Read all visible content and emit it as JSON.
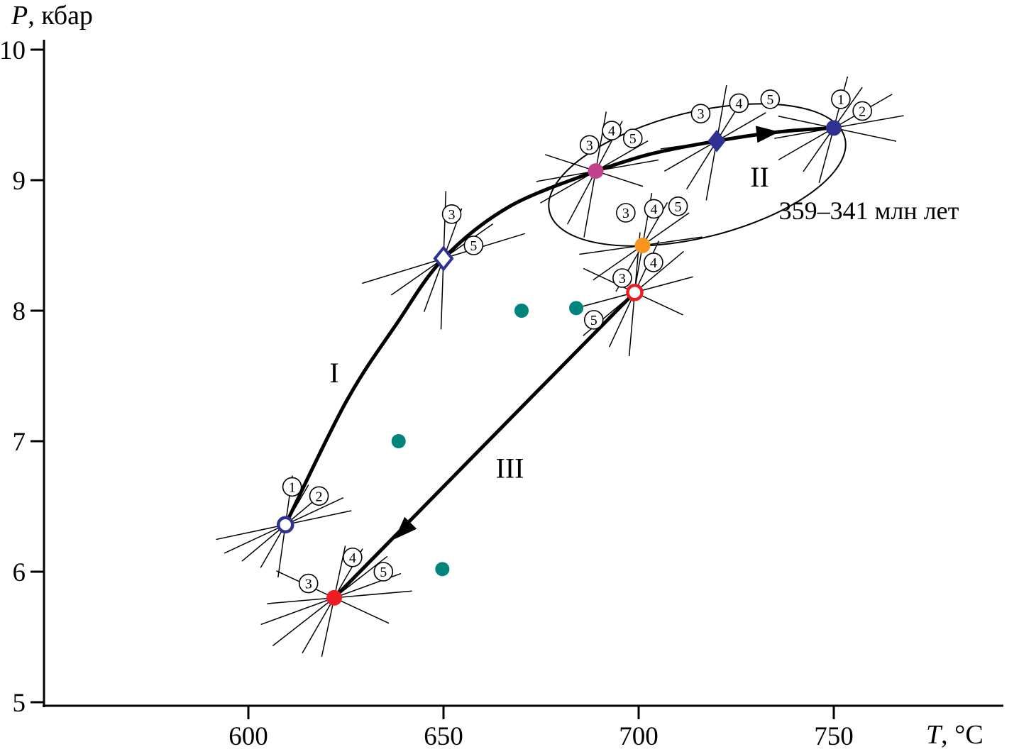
{
  "figure": {
    "y_axis_title": "P, кбар",
    "x_axis_title": "T, °C"
  },
  "chart_data": {
    "type": "scatter",
    "xlabel": "T, °C",
    "ylabel": "P, кбар",
    "x_title": {
      "italic": "T",
      "rest": ", °C"
    },
    "y_title": {
      "italic": "P",
      "rest": ", кбар"
    },
    "xlim": [
      560,
      795
    ],
    "ylim": [
      5,
      10
    ],
    "x_ticks": [
      "600",
      "650",
      "700",
      "750"
    ],
    "y_ticks": [
      "5",
      "6",
      "7",
      "8",
      "9",
      "10"
    ],
    "x_tick_values": [
      600,
      650,
      700,
      750
    ],
    "y_tick_values": [
      5,
      6,
      7,
      8,
      9,
      10
    ],
    "grid": false,
    "legend": "none",
    "colors": {
      "navy": "#2E3192",
      "red": "#EC1C24",
      "magenta": "#C2418C",
      "orange": "#F7941E",
      "teal": "#00857C",
      "black": "#000000"
    },
    "annotations": [
      {
        "id": "segment-label-I",
        "text": "I",
        "T": 622,
        "P": 7.45,
        "size": 40
      },
      {
        "id": "segment-label-II",
        "text": "II",
        "T": 731,
        "P": 8.95,
        "size": 40
      },
      {
        "id": "segment-label-III",
        "text": "III",
        "T": 667,
        "P": 6.72,
        "size": 40
      },
      {
        "id": "age-label",
        "text": "359–341 млн лет",
        "T": 759,
        "P": 8.7,
        "size": 36
      }
    ],
    "points": [
      {
        "id": "stage1-start",
        "marker": "circle-open",
        "color": "navy",
        "T": 609.5,
        "P": 6.36,
        "labels": [
          {
            "n": "1",
            "T": 611.2,
            "P": 6.65
          },
          {
            "n": "2",
            "T": 618.1,
            "P": 6.58
          }
        ],
        "cross_lines": [
          {
            "a": 82,
            "r1": 75,
            "r2": 70
          },
          {
            "a": 60,
            "r1": 70,
            "r2": 65
          },
          {
            "a": 40,
            "r1": 80,
            "r2": 75
          },
          {
            "a": 25,
            "r1": 95,
            "r2": 90
          },
          {
            "a": 12,
            "r1": 100,
            "r2": 95
          }
        ]
      },
      {
        "id": "stage3-end",
        "marker": "circle-filled",
        "color": "red",
        "T": 622,
        "P": 5.8,
        "labels": [
          {
            "n": "3",
            "T": 615.4,
            "P": 5.91
          },
          {
            "n": "4",
            "T": 626.7,
            "P": 6.11
          },
          {
            "n": "5",
            "T": 634.6,
            "P": 6.0
          }
        ],
        "cross_lines": [
          {
            "a": 78,
            "r1": 85,
            "r2": 75
          },
          {
            "a": 60,
            "r1": 90,
            "r2": 80
          },
          {
            "a": 38,
            "r1": 110,
            "r2": 95
          },
          {
            "a": 20,
            "r1": 110,
            "r2": 100
          },
          {
            "a": 5,
            "r1": 95,
            "r2": 110
          },
          {
            "a": -25,
            "r1": 90,
            "r2": 85
          }
        ]
      },
      {
        "id": "stage1-mid",
        "marker": "diamond-open",
        "color": "navy",
        "T": 650,
        "P": 8.4,
        "labels": [
          {
            "n": "3",
            "T": 652.1,
            "P": 8.74
          },
          {
            "n": "5",
            "T": 657.7,
            "P": 8.5
          }
        ],
        "cross_lines": [
          {
            "a": 88,
            "r1": 100,
            "r2": 95
          },
          {
            "a": 70,
            "r1": 80,
            "r2": 75
          },
          {
            "a": 35,
            "r1": 90,
            "r2": 85
          },
          {
            "a": 17,
            "r1": 120,
            "r2": 120
          }
        ]
      },
      {
        "id": "stage1-peak",
        "marker": "circle-filled",
        "color": "magenta",
        "T": 689,
        "P": 9.07,
        "labels": [
          {
            "n": "3",
            "T": 687.4,
            "P": 9.27
          },
          {
            "n": "4",
            "T": 693.1,
            "P": 9.38
          },
          {
            "n": "5",
            "T": 698.5,
            "P": 9.32
          }
        ],
        "cross_lines": [
          {
            "a": 80,
            "r1": 95,
            "r2": 85
          },
          {
            "a": 62,
            "r1": 85,
            "r2": 80
          },
          {
            "a": 30,
            "r1": 90,
            "r2": 85
          },
          {
            "a": 10,
            "r1": 85,
            "r2": 90
          },
          {
            "a": -18,
            "r1": 75,
            "r2": 70
          }
        ]
      },
      {
        "id": "stage2-mid",
        "marker": "circle-filled",
        "color": "orange",
        "T": 701,
        "P": 8.5,
        "labels": [
          {
            "n": "3",
            "T": 696.7,
            "P": 8.75
          },
          {
            "n": "4",
            "T": 703.9,
            "P": 8.78
          },
          {
            "n": "5",
            "T": 710.1,
            "P": 8.8
          }
        ],
        "cross_lines": [
          {
            "a": 80,
            "r1": 80,
            "r2": 75
          },
          {
            "a": 60,
            "r1": 75,
            "r2": 70
          },
          {
            "a": 35,
            "r1": 85,
            "r2": 80
          },
          {
            "a": 8,
            "r1": 90,
            "r2": 85
          }
        ]
      },
      {
        "id": "stage3-start",
        "marker": "circle-open",
        "color": "red",
        "T": 699,
        "P": 8.14,
        "labels": [
          {
            "n": "3",
            "T": 695.8,
            "P": 8.25
          },
          {
            "n": "4",
            "T": 703.8,
            "P": 8.37
          },
          {
            "n": "5",
            "T": 688.5,
            "P": 7.93
          }
        ],
        "cross_lines": [
          {
            "a": 85,
            "r1": 90,
            "r2": 85
          },
          {
            "a": 65,
            "r1": 85,
            "r2": 80
          },
          {
            "a": 40,
            "r1": 95,
            "r2": 90
          },
          {
            "a": 15,
            "r1": 90,
            "r2": 85
          },
          {
            "a": -25,
            "r1": 80,
            "r2": 75
          }
        ]
      },
      {
        "id": "stage2-point",
        "marker": "diamond-filled",
        "color": "navy",
        "T": 720,
        "P": 9.3,
        "labels": [
          {
            "n": "3",
            "T": 715.9,
            "P": 9.51
          },
          {
            "n": "4",
            "T": 725.7,
            "P": 9.59
          },
          {
            "n": "5",
            "T": 733.7,
            "P": 9.62
          }
        ],
        "cross_lines": [
          {
            "a": 80,
            "r1": 85,
            "r2": 80
          },
          {
            "a": 58,
            "r1": 80,
            "r2": 75
          },
          {
            "a": 30,
            "r1": 85,
            "r2": 80
          },
          {
            "a": 8,
            "r1": 80,
            "r2": 85
          }
        ]
      },
      {
        "id": "stage2-peak",
        "marker": "circle-filled",
        "color": "navy",
        "T": 750,
        "P": 9.4,
        "labels": [
          {
            "n": "1",
            "T": 751.8,
            "P": 9.62
          },
          {
            "n": "2",
            "T": 757.3,
            "P": 9.53
          }
        ],
        "cross_lines": [
          {
            "a": 75,
            "r1": 80,
            "r2": 75
          },
          {
            "a": 55,
            "r1": 75,
            "r2": 70
          },
          {
            "a": 30,
            "r1": 90,
            "r2": 95
          },
          {
            "a": 10,
            "r1": 85,
            "r2": 100
          },
          {
            "a": -12,
            "r1": 80,
            "r2": 90
          }
        ]
      }
    ],
    "aux_points": [
      {
        "T": 670,
        "P": 8.0
      },
      {
        "T": 684,
        "P": 8.02
      },
      {
        "T": 638.5,
        "P": 7.0
      },
      {
        "T": 649.7,
        "P": 6.02
      }
    ],
    "paths": [
      {
        "id": "I",
        "points": [
          [
            609.5,
            6.36
          ],
          [
            625,
            7.3
          ],
          [
            638,
            7.9
          ],
          [
            650,
            8.4
          ],
          [
            667,
            8.8
          ],
          [
            689,
            9.07
          ]
        ]
      },
      {
        "id": "II",
        "points": [
          [
            689,
            9.07
          ],
          [
            703,
            9.2
          ],
          [
            720,
            9.3
          ],
          [
            736,
            9.37
          ],
          [
            749.5,
            9.4
          ]
        ]
      },
      {
        "id": "III",
        "points": [
          [
            699,
            8.14
          ],
          [
            668,
            7.2
          ],
          [
            645,
            6.5
          ],
          [
            622,
            5.8
          ]
        ]
      }
    ],
    "arrows": [
      {
        "path": "II",
        "T": 736,
        "P": 9.37,
        "angle_deg": -6
      },
      {
        "path": "III",
        "T": 637.5,
        "P": 6.25,
        "angle_deg": 134.5
      }
    ],
    "loop_ellipse": {
      "center_T": 715,
      "center_P": 9.04,
      "rx_T": 39,
      "ry_P": 0.48,
      "rotation_deg": -14
    }
  }
}
